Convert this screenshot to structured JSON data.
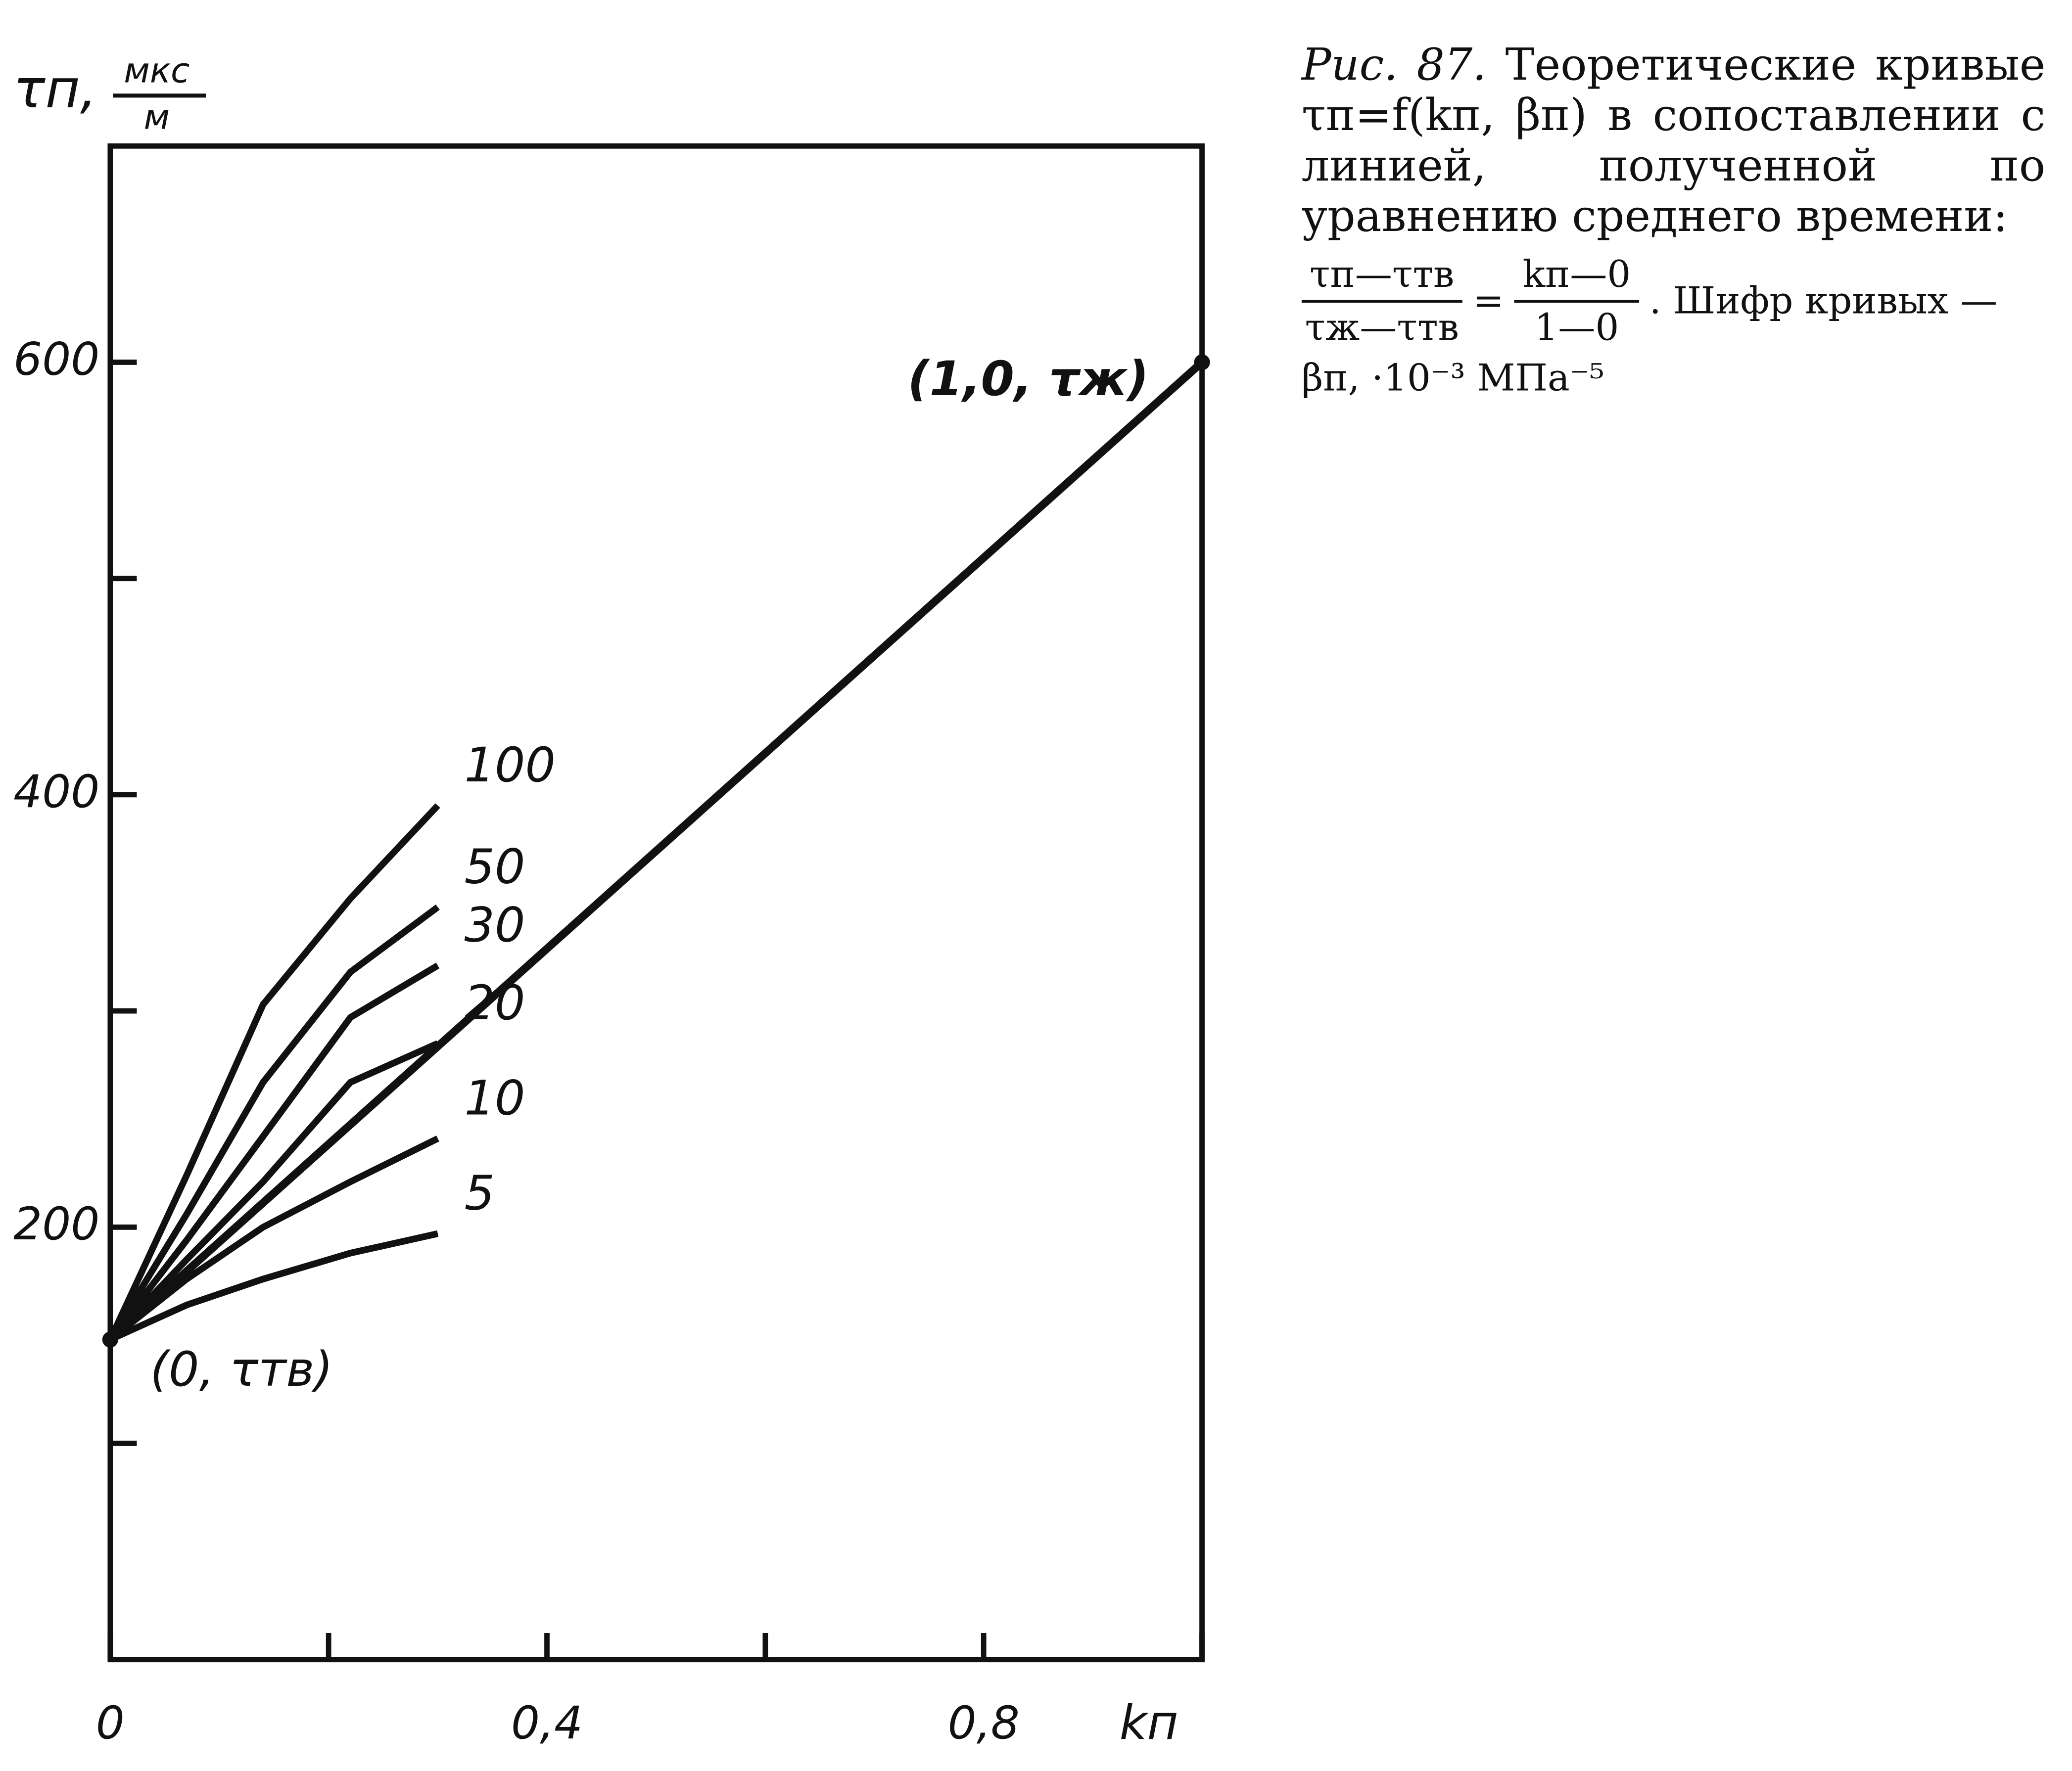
{
  "chart_data": {
    "type": "line",
    "y_label": "τп,",
    "y_unit_num": "мкс",
    "y_unit_den": "м",
    "x_label": "kп",
    "xlim": [
      0,
      1.0
    ],
    "ylim": [
      0,
      700
    ],
    "xticks": [
      {
        "value": 0,
        "label": "0"
      },
      {
        "value": 0.4,
        "label": "0,4"
      },
      {
        "value": 0.8,
        "label": "0,8"
      }
    ],
    "minor_xticks": [
      0.2,
      0.6,
      1.0
    ],
    "yticks": [
      200,
      400,
      600
    ],
    "minor_yticks": [
      100,
      300,
      500
    ],
    "x": [
      0,
      0.07,
      0.14,
      0.22,
      0.3
    ],
    "series": [
      {
        "name": "100",
        "color": "#111111",
        "values": [
          148,
          224,
          303,
          352,
          395
        ]
      },
      {
        "name": "50",
        "color": "#111111",
        "values": [
          148,
          206,
          267,
          318,
          348
        ]
      },
      {
        "name": "30",
        "color": "#111111",
        "values": [
          148,
          194,
          242,
          297,
          321
        ]
      },
      {
        "name": "20",
        "color": "#111111",
        "values": [
          148,
          185,
          221,
          267,
          285
        ]
      },
      {
        "name": "10",
        "color": "#111111",
        "values": [
          148,
          176,
          200,
          221,
          241
        ]
      },
      {
        "name": "5",
        "color": "#111111",
        "values": [
          148,
          164,
          176,
          188,
          197
        ]
      }
    ],
    "reference_line": {
      "x": [
        0,
        1.0
      ],
      "values": [
        148,
        600
      ],
      "color": "#111111"
    },
    "end_labels": [
      "(0, τтв)",
      "(1,0, τж)"
    ],
    "caption": {
      "figure": "Рис. 87.",
      "text": "Теоретические кривые τп=f(kп, βп) в сопоставлении с линией, полученной по уравнению среднего времени:",
      "numerator_left": "τп—τтв",
      "denominator_left": "τж—τтв",
      "equals": "=",
      "numerator_right": "kп—0",
      "denominator_right": "1—0",
      "tail": ". Шифр кривых —",
      "units": "βп, ·10⁻³ МПа⁻⁵"
    }
  }
}
